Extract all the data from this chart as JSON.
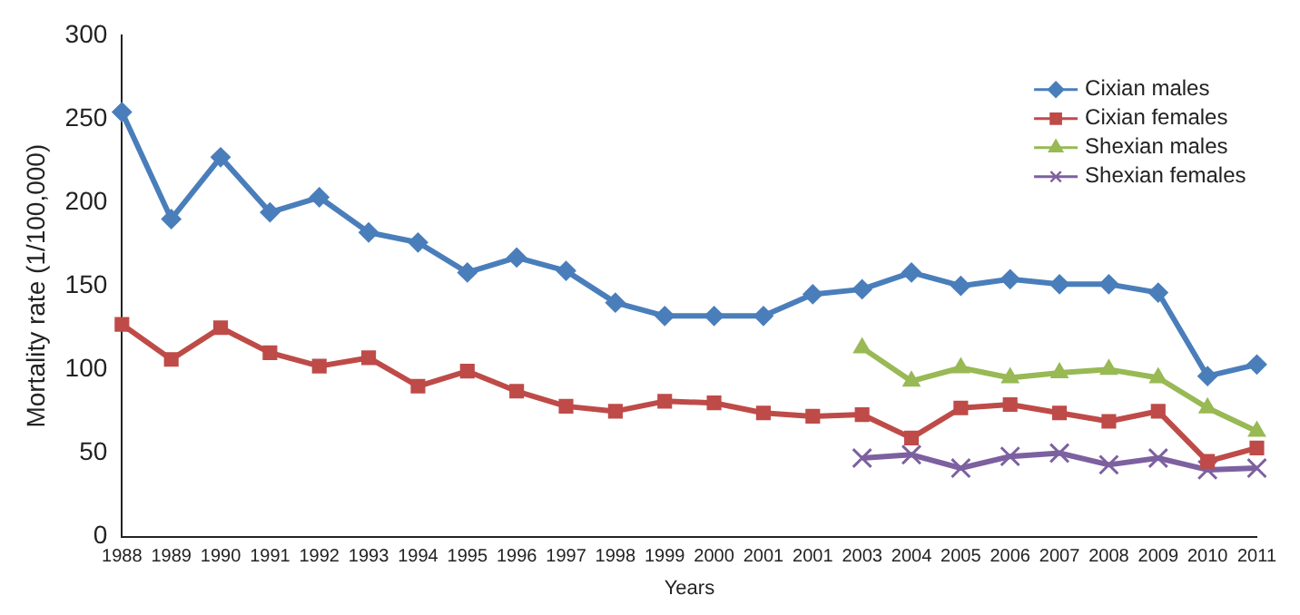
{
  "chart_data": {
    "type": "line",
    "xlabel": "Years",
    "ylabel": "Mortality rate (1/100,000)",
    "categories": [
      "1988",
      "1989",
      "1990",
      "1991",
      "1992",
      "1993",
      "1994",
      "1995",
      "1996",
      "1997",
      "1998",
      "1999",
      "2000",
      "2001",
      "2001",
      "2003",
      "2004",
      "2005",
      "2006",
      "2007",
      "2008",
      "2009",
      "2010",
      "2011"
    ],
    "series": [
      {
        "name": "Cixian males",
        "color": "#4a7ebb",
        "marker": "diamond",
        "values": [
          254,
          190,
          227,
          194,
          203,
          182,
          176,
          158,
          167,
          159,
          140,
          132,
          132,
          132,
          145,
          148,
          158,
          150,
          154,
          151,
          151,
          146,
          96,
          103
        ]
      },
      {
        "name": "Cixian females",
        "color": "#be4b48",
        "marker": "square",
        "values": [
          127,
          106,
          125,
          110,
          102,
          107,
          90,
          99,
          87,
          78,
          75,
          81,
          80,
          74,
          72,
          73,
          59,
          77,
          79,
          74,
          69,
          75,
          45,
          53
        ]
      },
      {
        "name": "Shexian males",
        "color": "#98b954",
        "marker": "triangle",
        "values": [
          null,
          null,
          null,
          null,
          null,
          null,
          null,
          null,
          null,
          null,
          null,
          null,
          null,
          null,
          null,
          113,
          93,
          101,
          95,
          98,
          100,
          95,
          77,
          63
        ]
      },
      {
        "name": "Shexian females",
        "color": "#7d60a0",
        "marker": "cross",
        "values": [
          null,
          null,
          null,
          null,
          null,
          null,
          null,
          null,
          null,
          null,
          null,
          null,
          null,
          null,
          null,
          47,
          49,
          41,
          48,
          50,
          43,
          47,
          40,
          41
        ]
      }
    ],
    "ylim": [
      0,
      300
    ],
    "yticks": [
      0,
      50,
      100,
      150,
      200,
      250,
      300
    ],
    "grid": false,
    "legend": "top right"
  }
}
